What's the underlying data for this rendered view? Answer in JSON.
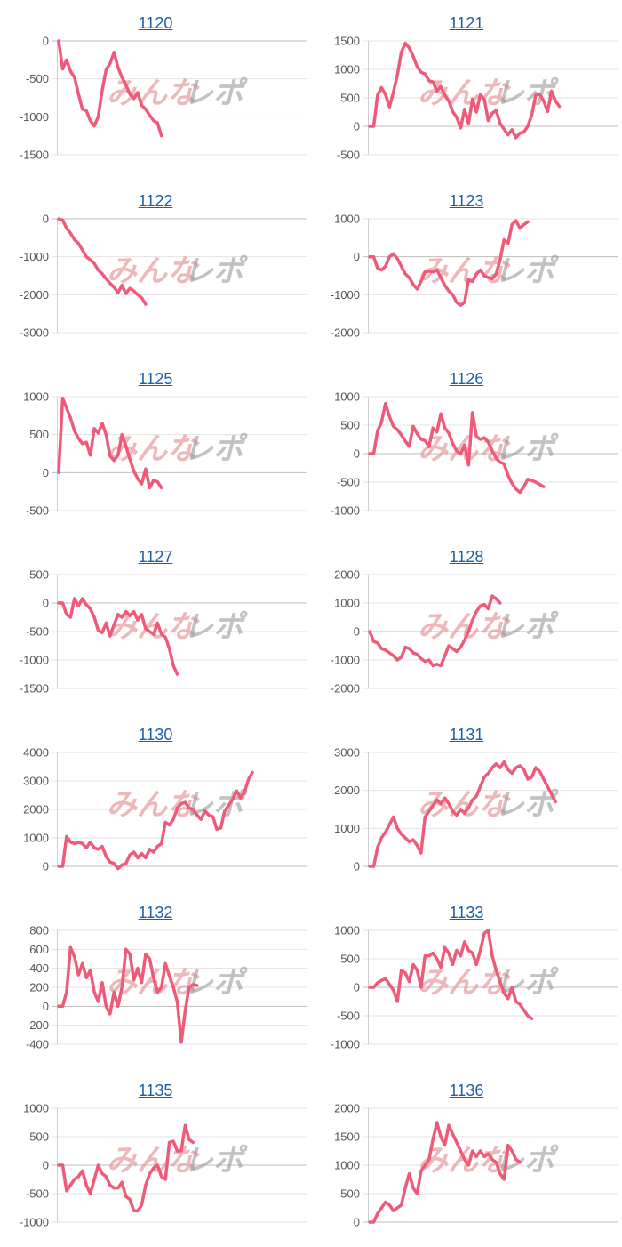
{
  "watermark": {
    "left": "みんな",
    "right": "レポ"
  },
  "colors": {
    "series": "#ee5a78",
    "title_link": "#1a5fa8",
    "tick_text": "#555555",
    "gridline": "#e3e3e3"
  },
  "chart_data": [
    {
      "title": "1120",
      "type": "line",
      "ylim": [
        -1500,
        0
      ],
      "yticks": [
        0,
        -500,
        -1000,
        -1500
      ],
      "values": [
        0,
        -370,
        -250,
        -400,
        -480,
        -700,
        -900,
        -920,
        -1050,
        -1120,
        -1000,
        -650,
        -380,
        -300,
        -150,
        -350,
        -480,
        -580,
        -700,
        -760,
        -680,
        -850,
        -900,
        -980,
        -1050,
        -1080,
        -1250
      ]
    },
    {
      "title": "1121",
      "type": "line",
      "ylim": [
        -500,
        1500
      ],
      "yticks": [
        1500,
        1000,
        500,
        0,
        -500
      ],
      "values": [
        0,
        0,
        550,
        680,
        560,
        340,
        600,
        900,
        1300,
        1460,
        1380,
        1230,
        1050,
        950,
        920,
        800,
        780,
        620,
        700,
        540,
        450,
        260,
        160,
        -30,
        300,
        50,
        480,
        250,
        560,
        470,
        100,
        230,
        280,
        50,
        -50,
        -150,
        -60,
        -200,
        -120,
        -100,
        0,
        200,
        550,
        560,
        450,
        260,
        620,
        450,
        350
      ]
    },
    {
      "title": "1122",
      "type": "line",
      "ylim": [
        -3000,
        0
      ],
      "yticks": [
        0,
        -1000,
        -2000,
        -3000
      ],
      "values": [
        0,
        -30,
        -250,
        -380,
        -550,
        -650,
        -820,
        -1000,
        -1080,
        -1180,
        -1350,
        -1450,
        -1580,
        -1700,
        -1800,
        -1950,
        -1750,
        -1970,
        -1830,
        -1900,
        -2000,
        -2080,
        -2250
      ]
    },
    {
      "title": "1123",
      "type": "line",
      "ylim": [
        -2000,
        1000
      ],
      "yticks": [
        1000,
        0,
        -1000,
        -2000
      ],
      "values": [
        0,
        0,
        -300,
        -350,
        -250,
        0,
        80,
        -50,
        -250,
        -450,
        -550,
        -730,
        -850,
        -650,
        -400,
        -380,
        -400,
        -350,
        -550,
        -750,
        -900,
        -1000,
        -1200,
        -1280,
        -1200,
        -600,
        -650,
        -450,
        -350,
        -500,
        -550,
        -580,
        -450,
        -80,
        450,
        350,
        850,
        950,
        750,
        850,
        920
      ]
    },
    {
      "title": "1125",
      "type": "line",
      "ylim": [
        -500,
        1000
      ],
      "yticks": [
        1000,
        500,
        0,
        -500
      ],
      "values": [
        0,
        980,
        850,
        720,
        550,
        450,
        380,
        400,
        230,
        580,
        520,
        650,
        500,
        220,
        160,
        230,
        500,
        350,
        180,
        20,
        -80,
        -150,
        50,
        -200,
        -100,
        -120,
        -200
      ]
    },
    {
      "title": "1126",
      "type": "line",
      "ylim": [
        -1000,
        1000
      ],
      "yticks": [
        1000,
        500,
        0,
        -500,
        -1000
      ],
      "values": [
        0,
        0,
        400,
        550,
        880,
        650,
        480,
        420,
        330,
        220,
        130,
        480,
        350,
        250,
        230,
        120,
        450,
        380,
        700,
        450,
        360,
        180,
        50,
        -10,
        150,
        -200,
        720,
        300,
        250,
        280,
        200,
        50,
        -80,
        -150,
        -180,
        -380,
        -520,
        -620,
        -680,
        -580,
        -450,
        -470,
        -500,
        -540,
        -580
      ]
    },
    {
      "title": "1127",
      "type": "line",
      "ylim": [
        -1500,
        500
      ],
      "yticks": [
        500,
        0,
        -500,
        -1000,
        -1500
      ],
      "values": [
        0,
        0,
        -200,
        -250,
        80,
        -50,
        80,
        -30,
        -100,
        -250,
        -480,
        -520,
        -350,
        -580,
        -380,
        -200,
        -250,
        -150,
        -220,
        -150,
        -300,
        -200,
        -450,
        -500,
        -550,
        -350,
        -550,
        -600,
        -800,
        -1100,
        -1250
      ]
    },
    {
      "title": "1128",
      "type": "line",
      "ylim": [
        -2000,
        2000
      ],
      "yticks": [
        2000,
        1000,
        0,
        -1000,
        -2000
      ],
      "values": [
        0,
        -350,
        -400,
        -600,
        -650,
        -750,
        -850,
        -1000,
        -900,
        -550,
        -600,
        -750,
        -800,
        -950,
        -1050,
        -1000,
        -1200,
        -1150,
        -1200,
        -850,
        -500,
        -600,
        -700,
        -550,
        -300,
        0,
        400,
        700,
        900,
        950,
        800,
        1250,
        1150,
        1000
      ]
    },
    {
      "title": "1130",
      "type": "line",
      "ylim": [
        0,
        4000
      ],
      "yticks": [
        4000,
        3000,
        2000,
        1000,
        0
      ],
      "values": [
        0,
        0,
        1050,
        850,
        800,
        850,
        800,
        650,
        850,
        650,
        600,
        700,
        350,
        150,
        100,
        -80,
        50,
        100,
        400,
        500,
        300,
        450,
        300,
        600,
        500,
        700,
        800,
        1550,
        1450,
        1650,
        2050,
        2200,
        2250,
        2050,
        2000,
        1800,
        1650,
        1950,
        1800,
        1750,
        1300,
        1350,
        1950,
        2150,
        2350,
        2650,
        2400,
        2600,
        3050,
        3300
      ]
    },
    {
      "title": "1131",
      "type": "line",
      "ylim": [
        0,
        3000
      ],
      "yticks": [
        3000,
        2000,
        1000,
        0
      ],
      "values": [
        0,
        0,
        500,
        750,
        900,
        1100,
        1300,
        1000,
        850,
        750,
        650,
        700,
        550,
        350,
        1300,
        1450,
        1600,
        1750,
        1650,
        1800,
        1650,
        1450,
        1350,
        1500,
        1400,
        1550,
        1750,
        1850,
        2100,
        2350,
        2450,
        2600,
        2700,
        2600,
        2750,
        2550,
        2450,
        2600,
        2650,
        2550,
        2300,
        2350,
        2600,
        2500,
        2300,
        2100,
        1900,
        1700
      ]
    },
    {
      "title": "1132",
      "type": "line",
      "ylim": [
        -400,
        800
      ],
      "yticks": [
        800,
        600,
        400,
        200,
        0,
        -200,
        -400
      ],
      "values": [
        0,
        0,
        150,
        620,
        520,
        330,
        450,
        300,
        380,
        150,
        50,
        250,
        0,
        -80,
        150,
        0,
        200,
        600,
        550,
        280,
        400,
        250,
        550,
        500,
        300,
        150,
        200,
        450,
        320,
        200,
        50,
        -380,
        -50,
        200,
        230,
        220
      ]
    },
    {
      "title": "1133",
      "type": "line",
      "ylim": [
        -1000,
        1000
      ],
      "yticks": [
        1000,
        500,
        0,
        -500,
        -1000
      ],
      "values": [
        0,
        0,
        80,
        120,
        150,
        50,
        -50,
        -250,
        300,
        250,
        100,
        400,
        300,
        0,
        550,
        550,
        600,
        500,
        350,
        700,
        600,
        400,
        650,
        550,
        800,
        650,
        600,
        400,
        650,
        950,
        1000,
        550,
        300,
        100,
        -100,
        -200,
        0,
        -250,
        -300,
        -400,
        -500,
        -550
      ]
    },
    {
      "title": "1135",
      "type": "line",
      "ylim": [
        -1000,
        1000
      ],
      "yticks": [
        1000,
        500,
        0,
        -500,
        -1000
      ],
      "values": [
        0,
        0,
        -450,
        -350,
        -250,
        -200,
        -100,
        -350,
        -500,
        -250,
        0,
        -150,
        -200,
        -350,
        -400,
        -400,
        -300,
        -550,
        -600,
        -800,
        -800,
        -700,
        -350,
        -150,
        -50,
        0,
        -200,
        -250,
        400,
        420,
        250,
        250,
        700,
        450,
        400
      ]
    },
    {
      "title": "1136",
      "type": "line",
      "ylim": [
        0,
        2000
      ],
      "yticks": [
        2000,
        1500,
        1000,
        500,
        0
      ],
      "values": [
        0,
        0,
        150,
        250,
        350,
        300,
        200,
        250,
        300,
        600,
        850,
        600,
        500,
        900,
        1000,
        1100,
        1450,
        1750,
        1500,
        1350,
        1700,
        1550,
        1400,
        1250,
        1100,
        1000,
        1250,
        1150,
        1250,
        1150,
        1200,
        1100,
        1050,
        850,
        750,
        1350,
        1250,
        1100,
        1050
      ]
    }
  ]
}
